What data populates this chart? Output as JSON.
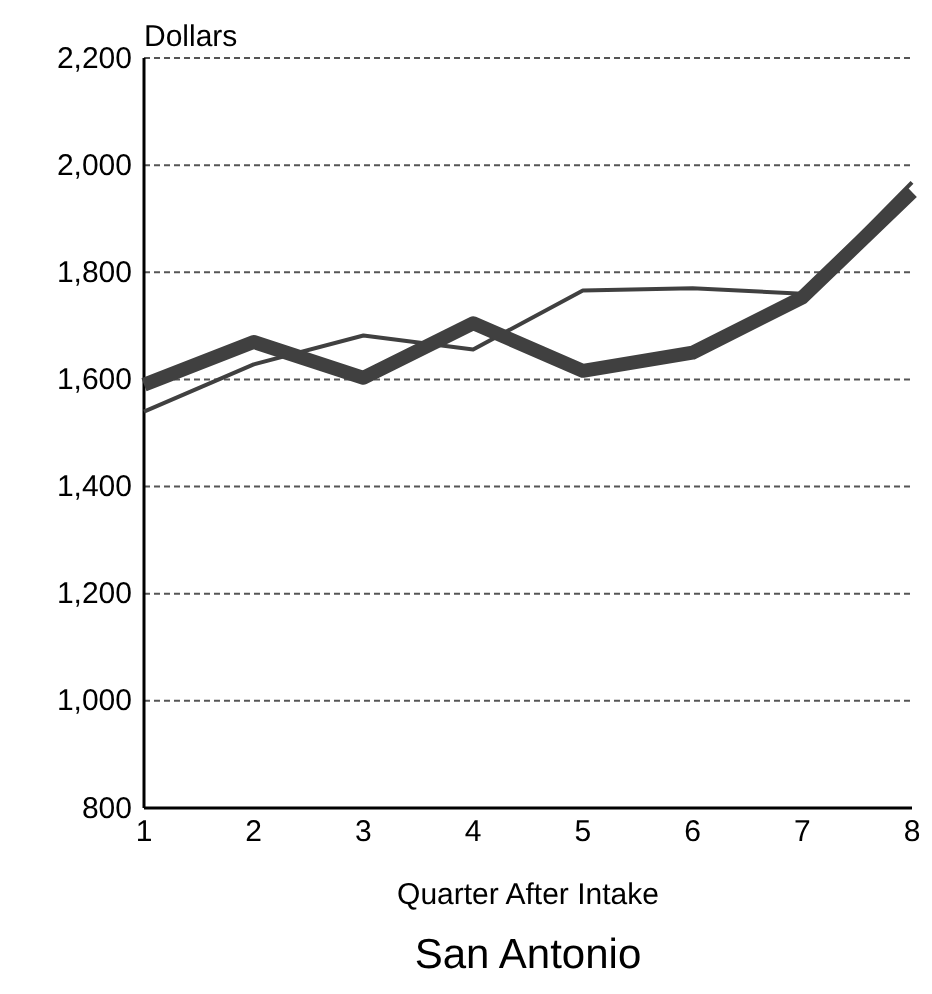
{
  "chart_data": {
    "type": "line",
    "title": "San Antonio",
    "xlabel": "Quarter After Intake",
    "ylabel": "Dollars",
    "x": [
      1,
      2,
      3,
      4,
      5,
      6,
      7,
      8
    ],
    "xlim": [
      1,
      8
    ],
    "xticks": [
      1,
      2,
      3,
      4,
      5,
      6,
      7,
      8
    ],
    "ylim": [
      800,
      2200
    ],
    "yticks": [
      {
        "value": 800,
        "label": "800"
      },
      {
        "value": 1000,
        "label": "1,000"
      },
      {
        "value": 1200,
        "label": "1,200"
      },
      {
        "value": 1400,
        "label": "1,400"
      },
      {
        "value": 1600,
        "label": "1,600"
      },
      {
        "value": 1800,
        "label": "1,800"
      },
      {
        "value": 2000,
        "label": "2,000"
      },
      {
        "value": 2200,
        "label": "2,200"
      }
    ],
    "grid": "y",
    "marker": "none",
    "line_style": "solid",
    "series": [
      {
        "color": "#404040",
        "values": [
          1540,
          1628,
          1682,
          1656,
          1766,
          1770,
          1760,
          1968
        ]
      },
      {
        "color": "#404040",
        "values": [
          1590,
          1670,
          1603,
          1705,
          1616,
          1650,
          1753,
          1950
        ]
      }
    ]
  }
}
